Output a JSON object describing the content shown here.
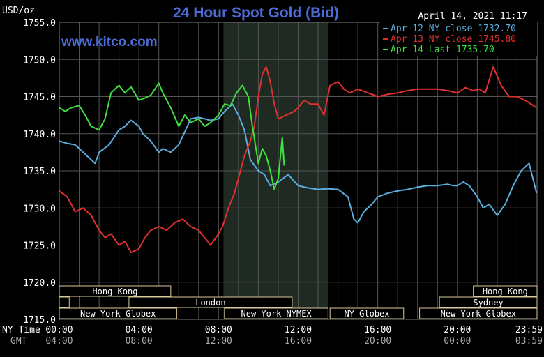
{
  "chart_data": {
    "type": "line",
    "title": "24 Hour Spot Gold (Bid)",
    "ylabel": "USD/oz",
    "watermark": "www.kitco.com",
    "timestamp": "April 14, 2021 11:17",
    "ylim": [
      1715,
      1755
    ],
    "xlim": [
      0,
      24
    ],
    "y_ticks": [
      "1755.0",
      "1750.0",
      "1745.0",
      "1740.0",
      "1735.0",
      "1730.0",
      "1725.0",
      "1720.0",
      "1715.0"
    ],
    "y_tick_values": [
      1755,
      1750,
      1745,
      1740,
      1735,
      1730,
      1725,
      1720,
      1715
    ],
    "x_row_label_ny": "NY Time",
    "x_row_label_gmt": "GMT",
    "x_ticks_ny": [
      "00:00",
      "04:00",
      "08:00",
      "12:00",
      "16:00",
      "20:00",
      "23:59"
    ],
    "x_ticks_gmt": [
      "04:00",
      "08:00",
      "12:00",
      "16:00",
      "20:00",
      "00:00",
      "03:59"
    ],
    "x_tick_values": [
      0,
      4,
      8,
      12,
      16,
      20,
      23.98
    ],
    "shaded_region": [
      8.25,
      13.5
    ],
    "grid": true,
    "legend_position": "top-right",
    "colors": {
      "background": "#000000",
      "grid": "#555555",
      "title": "#4b6bd6",
      "watermark": "#4b6bd6",
      "axis_text": "#ffffff",
      "session_box": "#d8c89a"
    },
    "series": [
      {
        "name": "Apr 12 NY close 1732.70",
        "color": "#5aaee0",
        "x": [
          0,
          0.4,
          0.8,
          1.2,
          1.6,
          1.8,
          2.0,
          2.5,
          3.0,
          3.3,
          3.6,
          4.0,
          4.2,
          4.6,
          5.0,
          5.2,
          5.6,
          6.0,
          6.3,
          6.6,
          7.0,
          7.3,
          7.6,
          8.0,
          8.3,
          8.7,
          9.0,
          9.3,
          9.6,
          10.0,
          10.3,
          10.6,
          11.0,
          11.5,
          12.0,
          12.5,
          13.0,
          13.5,
          14.0,
          14.5,
          14.8,
          15.0,
          15.3,
          15.7,
          16.0,
          16.5,
          17.0,
          17.5,
          18.0,
          18.5,
          19.0,
          19.5,
          19.8,
          20.0,
          20.3,
          20.6,
          21.0,
          21.3,
          21.6,
          22.0,
          22.4,
          22.8,
          23.2,
          23.6,
          23.98
        ],
        "y": [
          1739,
          1738.7,
          1738.5,
          1737.5,
          1736.5,
          1736,
          1737.5,
          1738.5,
          1740.5,
          1741,
          1741.8,
          1741,
          1740,
          1739,
          1737.5,
          1738,
          1737.5,
          1738.5,
          1740.2,
          1742,
          1742.2,
          1742,
          1741.8,
          1742,
          1743,
          1744,
          1742.5,
          1740.5,
          1736.5,
          1735,
          1734.5,
          1733,
          1733.5,
          1734.5,
          1733,
          1732.7,
          1732.5,
          1732.6,
          1732.5,
          1731.5,
          1728.5,
          1728,
          1729.5,
          1730.5,
          1731.5,
          1732,
          1732.3,
          1732.5,
          1732.8,
          1733,
          1733,
          1733.2,
          1733,
          1733,
          1733.5,
          1733,
          1731.5,
          1730,
          1730.5,
          1729,
          1730.5,
          1733,
          1735,
          1736,
          1732
        ]
      },
      {
        "name": "Apr 13 NY close 1745.80",
        "color": "#e03030",
        "x": [
          0,
          0.4,
          0.8,
          1.2,
          1.6,
          2.0,
          2.3,
          2.6,
          3.0,
          3.3,
          3.6,
          4.0,
          4.3,
          4.6,
          5.0,
          5.4,
          5.8,
          6.2,
          6.6,
          7.0,
          7.3,
          7.6,
          8.0,
          8.2,
          8.5,
          8.8,
          9.0,
          9.3,
          9.6,
          9.8,
          10.0,
          10.2,
          10.4,
          10.6,
          10.8,
          11.0,
          11.4,
          11.8,
          12.0,
          12.3,
          12.6,
          13.0,
          13.3,
          13.6,
          14.0,
          14.3,
          14.6,
          15.0,
          15.5,
          16.0,
          16.5,
          17.0,
          17.5,
          18.0,
          18.5,
          19.0,
          19.5,
          20.0,
          20.4,
          20.8,
          21.1,
          21.4,
          21.8,
          22.2,
          22.6,
          23.0,
          23.4,
          23.98
        ],
        "y": [
          1732.3,
          1731.5,
          1729.5,
          1730,
          1729,
          1727,
          1726,
          1726.5,
          1725,
          1725.5,
          1724,
          1724.5,
          1726,
          1727,
          1727.5,
          1727,
          1728,
          1728.5,
          1727.5,
          1727,
          1726,
          1725,
          1726.5,
          1727.5,
          1730,
          1732,
          1734,
          1737,
          1739,
          1741,
          1745,
          1748,
          1749,
          1747,
          1744,
          1742,
          1742.5,
          1743,
          1743.5,
          1744.5,
          1744,
          1744,
          1742.5,
          1746.5,
          1747,
          1746,
          1745.5,
          1746,
          1745.5,
          1745,
          1745.3,
          1745.5,
          1745.8,
          1746,
          1746,
          1746,
          1745.8,
          1745.5,
          1746.2,
          1745.8,
          1746,
          1745.5,
          1749,
          1746.5,
          1745,
          1745,
          1744.5,
          1743.5
        ]
      },
      {
        "name": "Apr 14 Last 1735.70",
        "color": "#40e040",
        "x": [
          0,
          0.3,
          0.6,
          1.0,
          1.3,
          1.6,
          2.0,
          2.3,
          2.6,
          3.0,
          3.3,
          3.6,
          4.0,
          4.3,
          4.6,
          5.0,
          5.2,
          5.6,
          6.0,
          6.3,
          6.6,
          7.0,
          7.3,
          7.6,
          8.0,
          8.3,
          8.6,
          8.9,
          9.2,
          9.5,
          9.7,
          10.0,
          10.2,
          10.4,
          10.6,
          10.8,
          11.0,
          11.2,
          11.3
        ],
        "y": [
          1743.5,
          1743,
          1743.5,
          1743.8,
          1742.5,
          1741,
          1740.5,
          1742,
          1745.5,
          1746.5,
          1745.5,
          1746.3,
          1744.5,
          1744.8,
          1745.2,
          1746.8,
          1745.5,
          1743.5,
          1741,
          1742.5,
          1741.5,
          1742,
          1741,
          1741.5,
          1742.5,
          1744,
          1743.8,
          1745.5,
          1746.5,
          1745,
          1741,
          1736,
          1738,
          1737,
          1735,
          1732.5,
          1734,
          1739.5,
          1735.7
        ]
      }
    ],
    "sessions": [
      {
        "label": "Hong Kong",
        "row": 0,
        "start": 0,
        "end": 5.6
      },
      {
        "label": "",
        "row": 1,
        "start": 0,
        "end": 0.5
      },
      {
        "label": "London",
        "row": 1,
        "start": 3.5,
        "end": 11.7
      },
      {
        "label": "New York Globex",
        "row": 2,
        "start": 0,
        "end": 5.9
      },
      {
        "label": "New York NYMEX",
        "row": 2,
        "start": 8.3,
        "end": 13.5
      },
      {
        "label": "NY Globex",
        "row": 2,
        "start": 13.6,
        "end": 17.3
      },
      {
        "label": "Hong Kong",
        "row": 0,
        "start": 20.8,
        "end": 24
      },
      {
        "label": "Sydney",
        "row": 1,
        "start": 19.1,
        "end": 24
      },
      {
        "label": "New York Globex",
        "row": 2,
        "start": 18.1,
        "end": 24
      }
    ]
  }
}
